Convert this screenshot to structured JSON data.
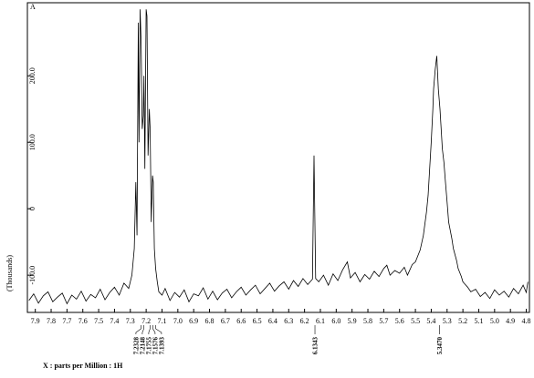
{
  "chart_data": {
    "type": "line",
    "corner_label": "A",
    "ylabel": "(Thousands)",
    "xlabel": "X : parts per Million : 1H",
    "color": "#000000",
    "xlim": [
      7.95,
      4.78
    ],
    "ylim": [
      -156,
      310
    ],
    "xticks": [
      7.9,
      7.8,
      7.7,
      7.6,
      7.5,
      7.4,
      7.3,
      7.2,
      7.1,
      {
        "value": 7,
        "label": "7.0"
      },
      6.9,
      6.8,
      6.7,
      6.6,
      6.5,
      6.4,
      6.3,
      6.2,
      6.1,
      {
        "value": 6,
        "label": "6.0"
      },
      5.9,
      5.8,
      5.7,
      5.6,
      5.5,
      5.4,
      5.3,
      5.2,
      5.1,
      {
        "value": 5,
        "label": "5.0"
      },
      4.9,
      4.8
    ],
    "yticks": [
      {
        "value": -100,
        "label": "-100.0"
      },
      0,
      {
        "value": 100,
        "label": "100.0"
      },
      {
        "value": 200,
        "label": "200.0"
      }
    ],
    "x": [
      7.94,
      7.91,
      7.88,
      7.85,
      7.82,
      7.79,
      7.76,
      7.73,
      7.7,
      7.67,
      7.64,
      7.61,
      7.58,
      7.55,
      7.52,
      7.49,
      7.46,
      7.43,
      7.4,
      7.37,
      7.34,
      7.31,
      7.29,
      7.275,
      7.265,
      7.258,
      7.25,
      7.245,
      7.238,
      7.232,
      7.225,
      7.218,
      7.214,
      7.208,
      7.2,
      7.195,
      7.188,
      7.18,
      7.175,
      7.168,
      7.16,
      7.155,
      7.148,
      7.14,
      7.13,
      7.12,
      7.1,
      7.08,
      7.05,
      7.02,
      6.99,
      6.96,
      6.93,
      6.9,
      6.87,
      6.84,
      6.81,
      6.78,
      6.75,
      6.72,
      6.69,
      6.66,
      6.63,
      6.6,
      6.57,
      6.54,
      6.51,
      6.48,
      6.45,
      6.42,
      6.39,
      6.36,
      6.33,
      6.3,
      6.27,
      6.24,
      6.21,
      6.18,
      6.15,
      6.14,
      6.13,
      6.11,
      6.08,
      6.05,
      6.02,
      5.99,
      5.96,
      5.93,
      5.91,
      5.88,
      5.85,
      5.82,
      5.79,
      5.76,
      5.73,
      5.7,
      5.68,
      5.66,
      5.63,
      5.6,
      5.57,
      5.55,
      5.52,
      5.5,
      5.47,
      5.45,
      5.43,
      5.42,
      5.41,
      5.4,
      5.39,
      5.385,
      5.375,
      5.365,
      5.355,
      5.345,
      5.33,
      5.32,
      5.31,
      5.3,
      5.29,
      5.27,
      5.26,
      5.24,
      5.23,
      5.21,
      5.2,
      5.17,
      5.15,
      5.12,
      5.09,
      5.06,
      5.03,
      5.0,
      4.97,
      4.94,
      4.91,
      4.88,
      4.85,
      4.82,
      4.8,
      4.79
    ],
    "values": [
      -138,
      -128,
      -142,
      -131,
      -125,
      -140,
      -133,
      -127,
      -143,
      -130,
      -136,
      -124,
      -139,
      -129,
      -134,
      -121,
      -137,
      -126,
      -118,
      -130,
      -112,
      -120,
      -100,
      -60,
      40,
      -40,
      280,
      100,
      300,
      250,
      120,
      140,
      200,
      60,
      300,
      290,
      80,
      150,
      120,
      -20,
      50,
      40,
      -60,
      -90,
      -110,
      -125,
      -130,
      -120,
      -138,
      -126,
      -133,
      -122,
      -140,
      -128,
      -131,
      -119,
      -136,
      -124,
      -137,
      -127,
      -121,
      -134,
      -125,
      -118,
      -130,
      -122,
      -115,
      -128,
      -120,
      -112,
      -124,
      -116,
      -110,
      -121,
      -108,
      -117,
      -105,
      -114,
      -106,
      80,
      -105,
      -110,
      -100,
      -115,
      -98,
      -108,
      -92,
      -80,
      -104,
      -96,
      -110,
      -99,
      -106,
      -94,
      -102,
      -90,
      -85,
      -100,
      -93,
      -97,
      -88,
      -100,
      -84,
      -80,
      -62,
      -40,
      -5,
      20,
      60,
      100,
      150,
      180,
      210,
      230,
      180,
      150,
      90,
      70,
      40,
      10,
      -20,
      -45,
      -60,
      -78,
      -90,
      -102,
      -110,
      -118,
      -125,
      -121,
      -132,
      -126,
      -135,
      -122,
      -130,
      -124,
      -133,
      -120,
      -128,
      -115,
      -126,
      -110
    ],
    "annotations": [
      {
        "x": 7.2328,
        "label": "7.2328"
      },
      {
        "x": 7.2148,
        "label": "7.2148"
      },
      {
        "x": 7.1755,
        "label": "7.1755"
      },
      {
        "x": 7.1576,
        "label": "7.1576"
      },
      {
        "x": 7.1393,
        "label": "7.1393"
      },
      {
        "x": 6.1343,
        "label": "6.1343"
      },
      {
        "x": 5.347,
        "label": "5.3470"
      }
    ]
  }
}
